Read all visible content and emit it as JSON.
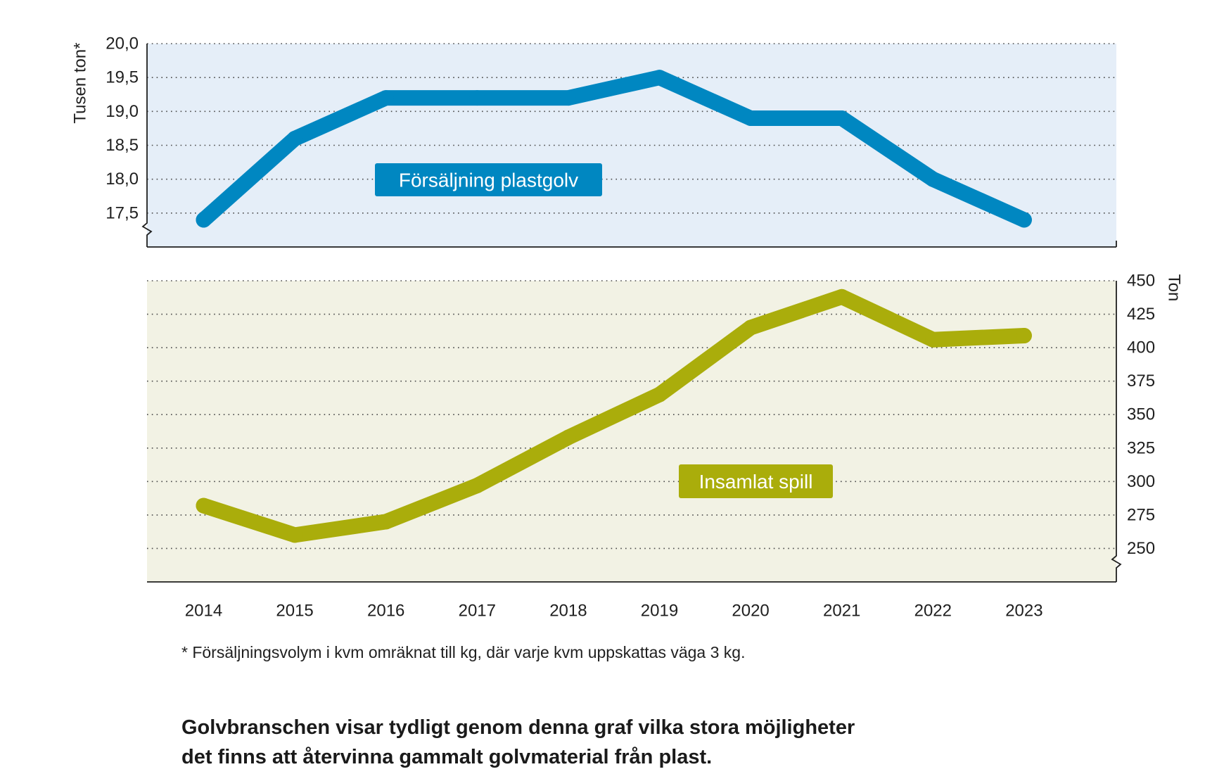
{
  "chart_data": [
    {
      "type": "line",
      "categories": [
        "2014",
        "2015",
        "2016",
        "2017",
        "2018",
        "2019",
        "2020",
        "2021",
        "2022",
        "2023"
      ],
      "ylabel": "Tusen ton*",
      "yaxis_side": "left",
      "yticks": [
        17.5,
        18.0,
        18.5,
        19.0,
        19.5,
        20.0
      ],
      "ytick_labels": [
        "17,5",
        "18,0",
        "18,5",
        "19,0",
        "19,5",
        "20,0"
      ],
      "ylim": [
        17.0,
        20.0
      ],
      "axis_break": true,
      "grid": true,
      "background_color": "#e5eef8",
      "series": [
        {
          "name": "Försäljning plastgolv",
          "color": "#0087c1",
          "values": [
            17.4,
            18.6,
            19.2,
            19.2,
            19.2,
            19.5,
            18.9,
            18.9,
            18.0,
            17.4
          ]
        }
      ]
    },
    {
      "type": "line",
      "categories": [
        "2014",
        "2015",
        "2016",
        "2017",
        "2018",
        "2019",
        "2020",
        "2021",
        "2022",
        "2023"
      ],
      "ylabel": "Ton",
      "yaxis_side": "right",
      "yticks": [
        250,
        275,
        300,
        325,
        350,
        375,
        400,
        425,
        450
      ],
      "ytick_labels": [
        "250",
        "275",
        "300",
        "325",
        "350",
        "375",
        "400",
        "425",
        "450"
      ],
      "ylim": [
        225,
        450
      ],
      "axis_break": true,
      "grid": true,
      "background_color": "#f2f2e4",
      "series": [
        {
          "name": "Insamlat spill",
          "color": "#aaad0b",
          "values": [
            282,
            260,
            270,
            297,
            333,
            365,
            415,
            438,
            406,
            409
          ]
        }
      ]
    }
  ],
  "footnote": "* Försäljningsvolym i kvm omräknat till kg, där varje kvm uppskattas väga 3 kg.",
  "caption_lines": [
    "Golvbranschen visar tydligt genom denna graf vilka stora möjligheter",
    "det finns att återvinna gammalt golvmaterial från plast."
  ]
}
